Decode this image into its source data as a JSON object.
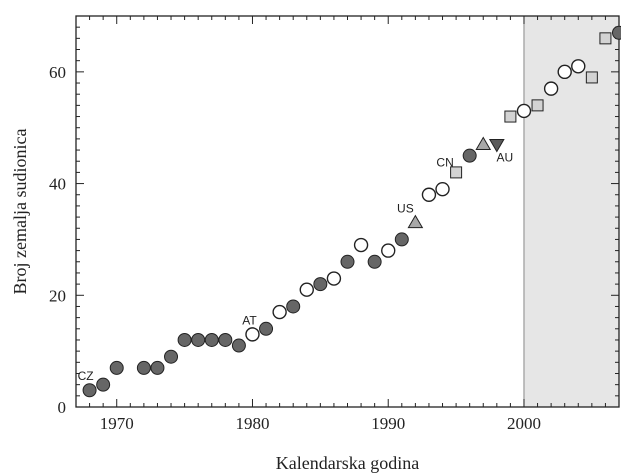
{
  "chart_data": {
    "type": "scatter",
    "title": "",
    "xlabel": "Kalendarska godina",
    "ylabel": "Broj zemalja sudionica",
    "xlim": [
      1967,
      2007
    ],
    "ylim": [
      0,
      70
    ],
    "x_ticks": [
      1970,
      1980,
      1990,
      2000
    ],
    "y_ticks": [
      0,
      20,
      40,
      60
    ],
    "grid": false,
    "legend": "none",
    "shaded_region": {
      "from": 2000,
      "to": 2007,
      "color": "#e6e6e6"
    },
    "colors": {
      "filled": "#666666",
      "open": "#ffffff",
      "square": "#d3d3d3",
      "tri_up": "#a8a8a8",
      "tri_down": "#5a5a5a",
      "edge": "#222222"
    },
    "series": [
      {
        "marker": "filled-circle",
        "points": [
          [
            1968,
            3
          ],
          [
            1969,
            4
          ],
          [
            1970,
            7
          ],
          [
            1972,
            7
          ],
          [
            1973,
            7
          ],
          [
            1974,
            9
          ],
          [
            1975,
            12
          ],
          [
            1976,
            12
          ],
          [
            1977,
            12
          ],
          [
            1978,
            12
          ],
          [
            1979,
            11
          ],
          [
            1981,
            14
          ],
          [
            1983,
            18
          ],
          [
            1985,
            22
          ],
          [
            1987,
            26
          ],
          [
            1989,
            26
          ],
          [
            1991,
            30
          ],
          [
            1996,
            45
          ],
          [
            2007,
            67
          ]
        ]
      },
      {
        "marker": "open-circle",
        "points": [
          [
            1980,
            13
          ],
          [
            1982,
            17
          ],
          [
            1984,
            21
          ],
          [
            1986,
            23
          ],
          [
            1988,
            29
          ],
          [
            1990,
            28
          ],
          [
            1993,
            38
          ],
          [
            1994,
            39
          ],
          [
            2000,
            53
          ],
          [
            2002,
            57
          ],
          [
            2003,
            60
          ],
          [
            2004,
            61
          ]
        ]
      },
      {
        "marker": "square",
        "points": [
          [
            1995,
            42
          ],
          [
            1999,
            52
          ],
          [
            2001,
            54
          ],
          [
            2005,
            59
          ],
          [
            2006,
            66
          ]
        ]
      },
      {
        "marker": "triangle-up",
        "points": [
          [
            1992,
            33
          ],
          [
            1997,
            47
          ]
        ]
      },
      {
        "marker": "triangle-down",
        "points": [
          [
            1998,
            47
          ]
        ]
      }
    ],
    "annotations": [
      {
        "text": "CZ",
        "x": 1968,
        "y": 3
      },
      {
        "text": "AT",
        "x": 1980,
        "y": 13
      },
      {
        "text": "US",
        "x": 1992,
        "y": 33
      },
      {
        "text": "CN",
        "x": 1995,
        "y": 42
      },
      {
        "text": "AU",
        "x": 1998,
        "y": 47
      }
    ]
  }
}
